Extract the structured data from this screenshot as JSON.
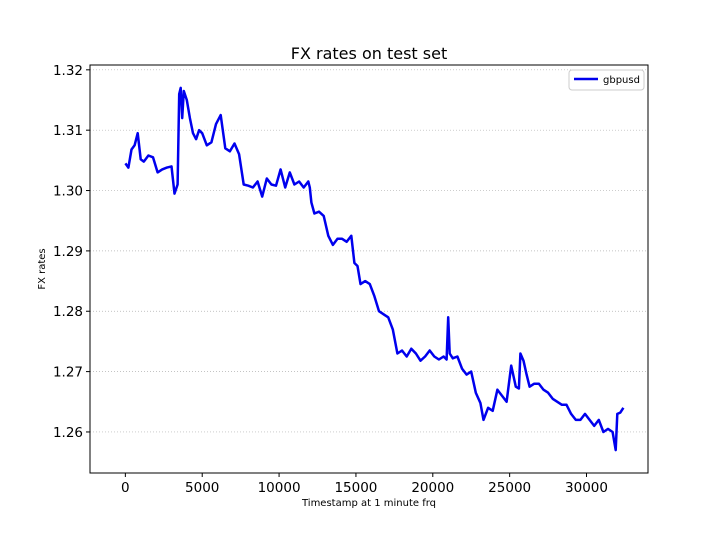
{
  "chart_data": {
    "type": "line",
    "title": "FX rates on test set",
    "xlabel": "Timestamp at 1 minute frq",
    "ylabel": "FX rates",
    "xlim": [
      -2300,
      34000
    ],
    "ylim": [
      1.2532,
      1.3208
    ],
    "xticks": [
      0,
      5000,
      10000,
      15000,
      20000,
      25000,
      30000
    ],
    "yticks": [
      1.26,
      1.27,
      1.28,
      1.29,
      1.3,
      1.31,
      1.32
    ],
    "ytick_labels": [
      "1.26",
      "1.27",
      "1.28",
      "1.29",
      "1.30",
      "1.31",
      "1.32"
    ],
    "grid": "horizontal dotted",
    "legend_position": "top-right",
    "colors": {
      "series": "#0000ee",
      "grid": "#b0b0b0"
    },
    "series": [
      {
        "name": "gbpusd",
        "x": [
          0,
          200,
          400,
          600,
          800,
          1000,
          1200,
          1500,
          1800,
          2100,
          2400,
          2700,
          3000,
          3200,
          3400,
          3500,
          3600,
          3700,
          3800,
          4000,
          4200,
          4400,
          4600,
          4800,
          5000,
          5300,
          5600,
          5900,
          6200,
          6500,
          6800,
          7100,
          7400,
          7700,
          8000,
          8300,
          8600,
          8900,
          9200,
          9500,
          9800,
          10100,
          10400,
          10700,
          11000,
          11300,
          11600,
          11900,
          12000,
          12100,
          12300,
          12600,
          12900,
          13200,
          13500,
          13800,
          14100,
          14400,
          14700,
          14900,
          15100,
          15300,
          15600,
          15900,
          16200,
          16500,
          16800,
          17100,
          17400,
          17700,
          18000,
          18300,
          18600,
          18900,
          19200,
          19500,
          19800,
          20100,
          20400,
          20700,
          20900,
          21000,
          21100,
          21300,
          21600,
          21900,
          22200,
          22500,
          22800,
          23100,
          23300,
          23600,
          23900,
          24200,
          24500,
          24800,
          25100,
          25400,
          25600,
          25700,
          25900,
          26100,
          26300,
          26600,
          26900,
          27200,
          27500,
          27800,
          28100,
          28400,
          28700,
          29000,
          29300,
          29600,
          29900,
          30200,
          30500,
          30800,
          31100,
          31400,
          31700,
          31900,
          32000,
          32200,
          32400
        ],
        "y": [
          1.3045,
          1.3038,
          1.3068,
          1.3075,
          1.3095,
          1.3052,
          1.3048,
          1.3058,
          1.3055,
          1.303,
          1.3035,
          1.3038,
          1.304,
          1.2995,
          1.301,
          1.316,
          1.317,
          1.312,
          1.3165,
          1.315,
          1.312,
          1.3095,
          1.3085,
          1.31,
          1.3095,
          1.3075,
          1.308,
          1.311,
          1.3125,
          1.307,
          1.3065,
          1.3078,
          1.306,
          1.301,
          1.3008,
          1.3005,
          1.3015,
          1.299,
          1.302,
          1.301,
          1.3008,
          1.3035,
          1.3005,
          1.303,
          1.301,
          1.3015,
          1.3005,
          1.3015,
          1.3005,
          1.298,
          1.2962,
          1.2965,
          1.2958,
          1.2925,
          1.291,
          1.292,
          1.292,
          1.2915,
          1.2925,
          1.288,
          1.2875,
          1.2845,
          1.285,
          1.2845,
          1.2825,
          1.28,
          1.2795,
          1.279,
          1.277,
          1.273,
          1.2735,
          1.2725,
          1.2738,
          1.273,
          1.2718,
          1.2725,
          1.2735,
          1.2725,
          1.272,
          1.2725,
          1.272,
          1.279,
          1.273,
          1.2722,
          1.2725,
          1.2705,
          1.2695,
          1.27,
          1.2665,
          1.2648,
          1.262,
          1.264,
          1.2635,
          1.267,
          1.266,
          1.265,
          1.271,
          1.2675,
          1.2672,
          1.273,
          1.2718,
          1.2695,
          1.2675,
          1.268,
          1.268,
          1.267,
          1.2665,
          1.2655,
          1.265,
          1.2645,
          1.2645,
          1.263,
          1.262,
          1.262,
          1.263,
          1.262,
          1.261,
          1.262,
          1.26,
          1.2605,
          1.26,
          1.257,
          1.263,
          1.2632,
          1.264
        ]
      }
    ]
  }
}
